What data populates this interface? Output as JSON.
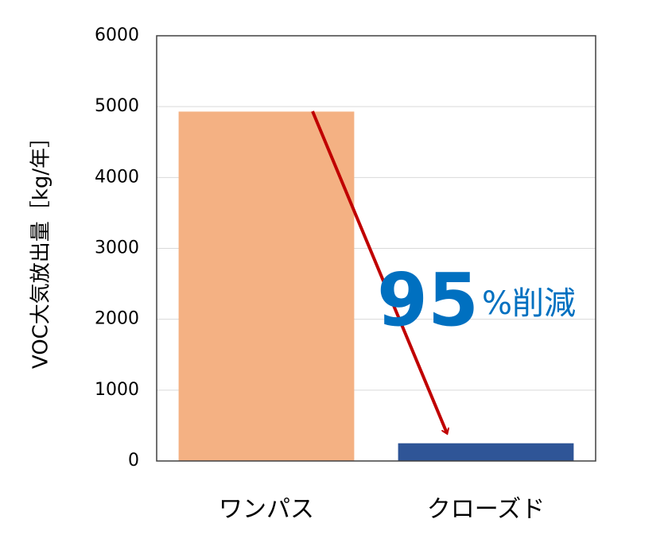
{
  "chart_data": {
    "type": "bar",
    "y_label": "VOC大気放出量［kg/年］",
    "categories": [
      "ワンパス",
      "クローズド"
    ],
    "values": [
      4930,
      250
    ],
    "colors": [
      "#f4b183",
      "#2f5597"
    ],
    "ylim": [
      0,
      6000
    ],
    "yticks": [
      0,
      1000,
      2000,
      3000,
      4000,
      5000,
      6000
    ],
    "grid": true,
    "annotation": {
      "number": "95",
      "text": "%削減",
      "color": "#0070c0"
    }
  }
}
